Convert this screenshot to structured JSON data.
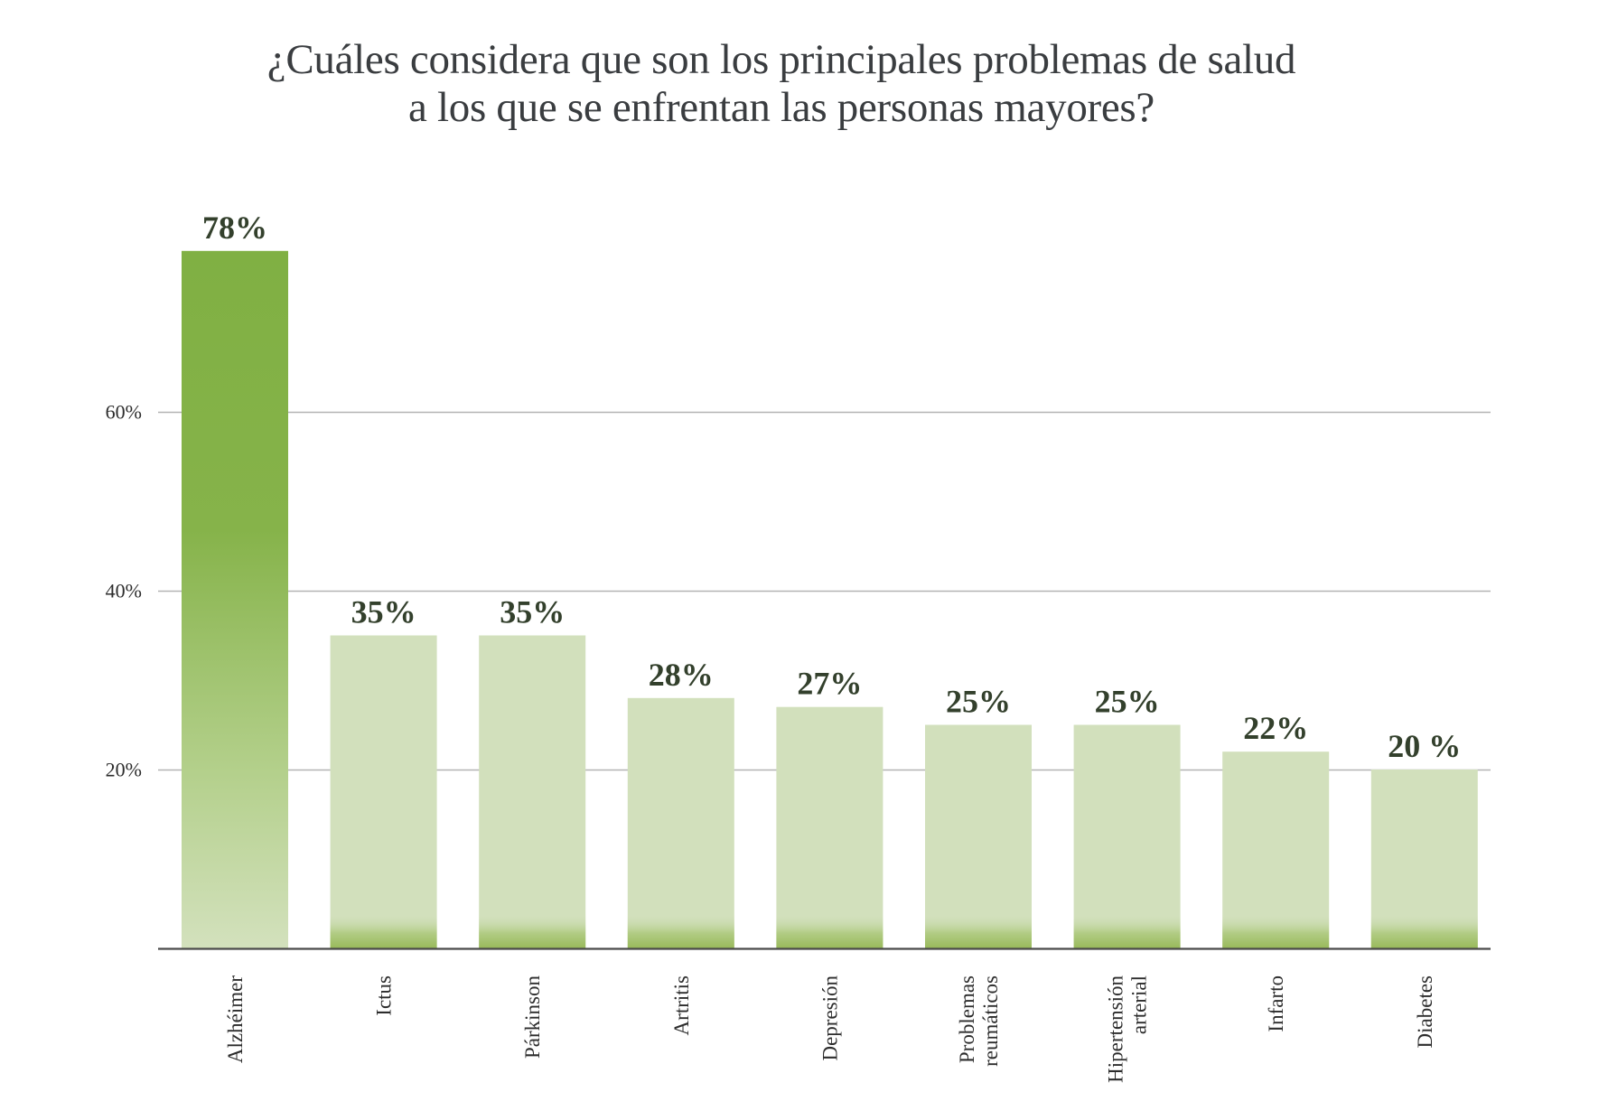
{
  "chart_data": {
    "type": "bar",
    "title": "¿Cuáles considera que son los principales problemas de salud a los que se enfrentan las personas mayores?",
    "title_lines": [
      "¿Cuáles considera que son los principales problemas de salud",
      "a los que se enfrentan las personas mayores?"
    ],
    "xlabel": "",
    "ylabel": "",
    "ylim": [
      0,
      80
    ],
    "yticks": [
      20,
      40,
      60
    ],
    "ytick_labels": [
      "20%",
      "40%",
      "60%"
    ],
    "grid": true,
    "categories": [
      "Alzhéimer",
      "Ictus",
      "Párkinson",
      "Artritis",
      "Depresión",
      "Problemas reumáticos",
      "Hipertensión arterial",
      "Infarto",
      "Diabetes"
    ],
    "category_label_lines": [
      [
        "Alzhéimer"
      ],
      [
        "Ictus"
      ],
      [
        "Párkinson"
      ],
      [
        "Artritis"
      ],
      [
        "Depresión"
      ],
      [
        "Problemas",
        "reumáticos"
      ],
      [
        "Hipertensión",
        "arterial"
      ],
      [
        "Infarto"
      ],
      [
        "Diabetes"
      ]
    ],
    "values": [
      78,
      35,
      35,
      28,
      27,
      25,
      25,
      22,
      20
    ],
    "value_labels": [
      "78%",
      "35%",
      "35%",
      "28%",
      "27%",
      "25%",
      "25%",
      "22%",
      "20 %"
    ],
    "highlight_index": 0,
    "colors": {
      "highlight_top": "#80b043",
      "highlight_bottom": "#d3e1bd",
      "bar_fill": "#d2e0bc",
      "bar_base": "#9dbd60",
      "grid": "#b4b4b4",
      "axis": "#4a4a4a",
      "value_text": "#33402c",
      "title_text": "#3a3d40"
    }
  }
}
